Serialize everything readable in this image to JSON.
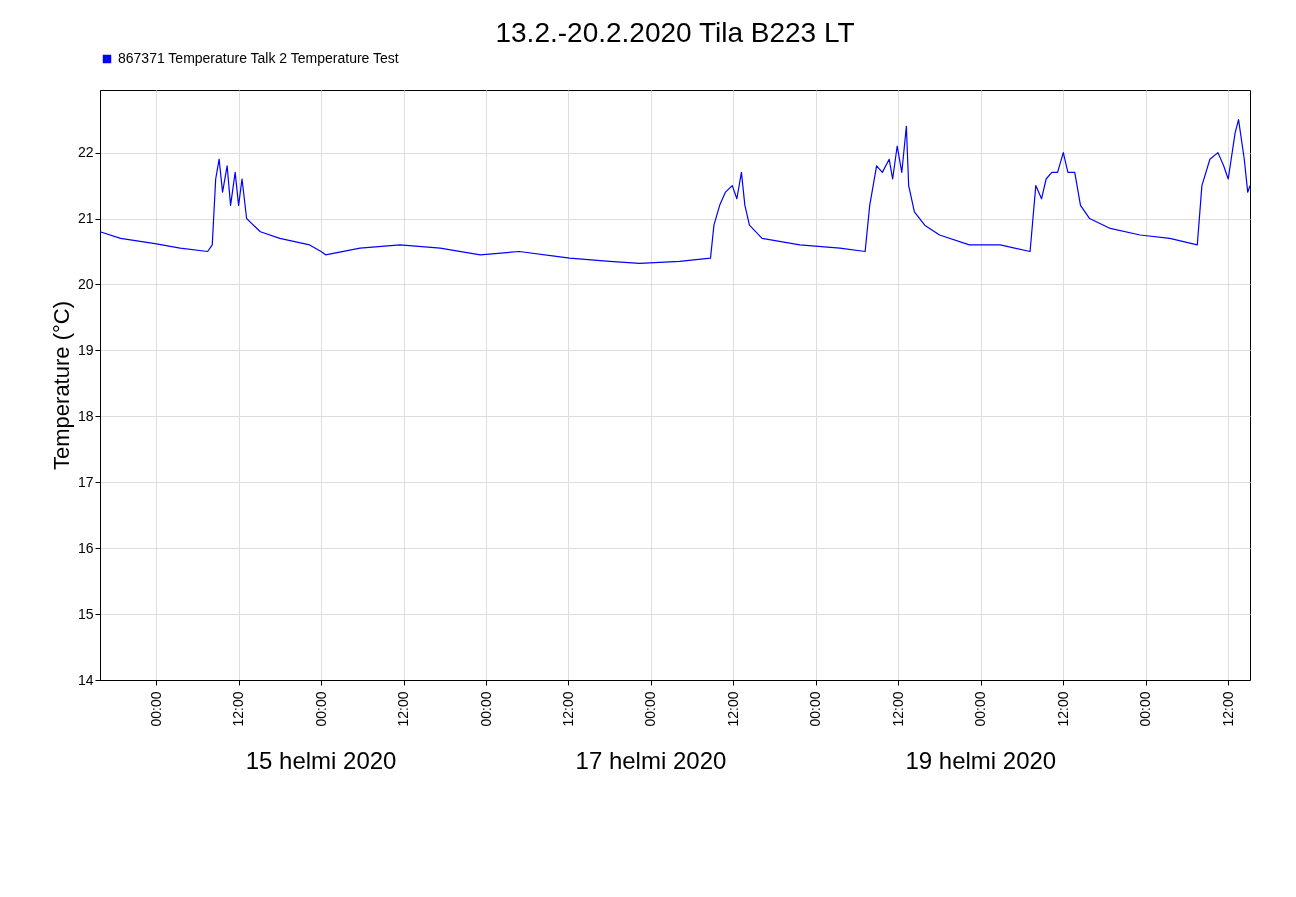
{
  "chart_data": {
    "type": "line",
    "title": "13.2.-20.2.2020 Tila B223 LT",
    "ylabel": "Temperature (°C)",
    "xlim": [
      "2020-02-13T15:50",
      "2020-02-20T15:10"
    ],
    "ylim": [
      14,
      22.95
    ],
    "yticks": [
      14,
      15,
      16,
      17,
      18,
      19,
      20,
      21,
      22
    ],
    "xticks": [
      {
        "value": "2020-02-14T00:00",
        "label": "00:00"
      },
      {
        "value": "2020-02-14T12:00",
        "label": "12:00"
      },
      {
        "value": "2020-02-15T00:00",
        "label": "00:00"
      },
      {
        "value": "2020-02-15T12:00",
        "label": "12:00"
      },
      {
        "value": "2020-02-16T00:00",
        "label": "00:00"
      },
      {
        "value": "2020-02-16T12:00",
        "label": "12:00"
      },
      {
        "value": "2020-02-17T00:00",
        "label": "00:00"
      },
      {
        "value": "2020-02-17T12:00",
        "label": "12:00"
      },
      {
        "value": "2020-02-18T00:00",
        "label": "00:00"
      },
      {
        "value": "2020-02-18T12:00",
        "label": "12:00"
      },
      {
        "value": "2020-02-19T00:00",
        "label": "00:00"
      },
      {
        "value": "2020-02-19T12:00",
        "label": "12:00"
      },
      {
        "value": "2020-02-20T00:00",
        "label": "00:00"
      },
      {
        "value": "2020-02-20T12:00",
        "label": "12:00"
      }
    ],
    "annotations": [
      "15 helmi 2020",
      "17 helmi 2020",
      "19 helmi 2020"
    ],
    "grid": true,
    "legend": "top left",
    "line_style": "solid",
    "marker": "none",
    "x": [
      "2020-02-13T15:50",
      "2020-02-13T18:50",
      "2020-02-13T23:50",
      "2020-02-14T03:30",
      "2020-02-14T07:30",
      "2020-02-14T08:10",
      "2020-02-14T08:40",
      "2020-02-14T09:10",
      "2020-02-14T09:40",
      "2020-02-14T10:20",
      "2020-02-14T10:50",
      "2020-02-14T11:30",
      "2020-02-14T12:00",
      "2020-02-14T12:30",
      "2020-02-14T13:10",
      "2020-02-14T13:40",
      "2020-02-14T15:10",
      "2020-02-14T18:00",
      "2020-02-14T22:20",
      "2020-02-15T00:00",
      "2020-02-15T00:40",
      "2020-02-15T05:40",
      "2020-02-15T11:30",
      "2020-02-15T17:20",
      "2020-02-15T23:10",
      "2020-02-16T04:50",
      "2020-02-16T12:10",
      "2020-02-16T18:00",
      "2020-02-16T22:20",
      "2020-02-17T04:10",
      "2020-02-17T08:40",
      "2020-02-17T09:10",
      "2020-02-17T10:00",
      "2020-02-17T10:50",
      "2020-02-17T11:50",
      "2020-02-17T12:30",
      "2020-02-17T13:10",
      "2020-02-17T13:40",
      "2020-02-17T14:20",
      "2020-02-17T16:10",
      "2020-02-17T21:40",
      "2020-02-18T03:30",
      "2020-02-18T07:10",
      "2020-02-18T07:50",
      "2020-02-18T08:50",
      "2020-02-18T09:40",
      "2020-02-18T10:40",
      "2020-02-18T11:10",
      "2020-02-18T11:50",
      "2020-02-18T12:30",
      "2020-02-18T13:10",
      "2020-02-18T13:30",
      "2020-02-18T14:20",
      "2020-02-18T15:50",
      "2020-02-18T18:00",
      "2020-02-18T22:20",
      "2020-02-19T02:50",
      "2020-02-19T07:10",
      "2020-02-19T08:00",
      "2020-02-19T08:50",
      "2020-02-19T09:30",
      "2020-02-19T10:20",
      "2020-02-19T11:10",
      "2020-02-19T12:00",
      "2020-02-19T12:40",
      "2020-02-19T13:40",
      "2020-02-19T14:30",
      "2020-02-19T15:50",
      "2020-02-19T18:50",
      "2020-02-19T23:10",
      "2020-02-20T03:30",
      "2020-02-20T07:30",
      "2020-02-20T08:10",
      "2020-02-20T09:20",
      "2020-02-20T10:30",
      "2020-02-20T11:20",
      "2020-02-20T12:00",
      "2020-02-20T13:00",
      "2020-02-20T13:30",
      "2020-02-20T14:20",
      "2020-02-20T14:50",
      "2020-02-20T15:10"
    ],
    "series": [
      {
        "name": "867371  Temperature Talk 2 Temperature Test",
        "color": "#0000ff",
        "values": [
          20.8,
          20.7,
          20.62,
          20.55,
          20.5,
          20.6,
          21.6,
          21.9,
          21.4,
          21.8,
          21.2,
          21.7,
          21.2,
          21.6,
          21.0,
          20.95,
          20.8,
          20.7,
          20.6,
          20.5,
          20.45,
          20.55,
          20.6,
          20.55,
          20.45,
          20.5,
          20.4,
          20.35,
          20.32,
          20.35,
          20.4,
          20.9,
          21.2,
          21.4,
          21.5,
          21.3,
          21.7,
          21.2,
          20.9,
          20.7,
          20.6,
          20.55,
          20.5,
          21.2,
          21.8,
          21.7,
          21.9,
          21.6,
          22.1,
          21.7,
          22.4,
          21.5,
          21.1,
          20.9,
          20.75,
          20.6,
          20.6,
          20.5,
          21.5,
          21.3,
          21.6,
          21.7,
          21.7,
          22.0,
          21.7,
          21.7,
          21.2,
          21.0,
          20.85,
          20.75,
          20.7,
          20.6,
          21.5,
          21.9,
          22.0,
          21.8,
          21.6,
          22.3,
          22.5,
          21.9,
          21.4,
          21.5
        ]
      }
    ]
  }
}
